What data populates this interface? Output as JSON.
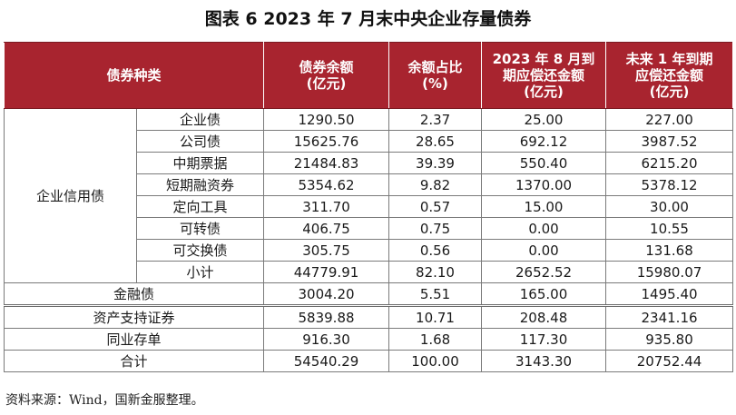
{
  "title": "图表 6  2023 年 7 月末中央企业存量债券",
  "headers": {
    "type": "债券种类",
    "balance_l1": "债券余额",
    "balance_l2": "(亿元)",
    "share_l1": "余额占比",
    "share_l2": "(%)",
    "aug_l1": "2023 年 8 月到",
    "aug_l2": "期应偿还金额",
    "aug_l3": "(亿元)",
    "year_l1": "未来 1 年到期",
    "year_l2": "应偿还金额",
    "year_l3": "(亿元)"
  },
  "group_label": "企业信用债",
  "credit_rows": [
    {
      "name": "企业债",
      "balance": "1290.50",
      "share": "2.37",
      "aug": "25.00",
      "year": "227.00"
    },
    {
      "name": "公司债",
      "balance": "15625.76",
      "share": "28.65",
      "aug": "692.12",
      "year": "3987.52"
    },
    {
      "name": "中期票据",
      "balance": "21484.83",
      "share": "39.39",
      "aug": "550.40",
      "year": "6215.20"
    },
    {
      "name": "短期融资券",
      "balance": "5354.62",
      "share": "9.82",
      "aug": "1370.00",
      "year": "5378.12"
    },
    {
      "name": "定向工具",
      "balance": "311.70",
      "share": "0.57",
      "aug": "15.00",
      "year": "30.00"
    },
    {
      "name": "可转债",
      "balance": "406.75",
      "share": "0.75",
      "aug": "0.00",
      "year": "10.55"
    },
    {
      "name": "可交换债",
      "balance": "305.75",
      "share": "0.56",
      "aug": "0.00",
      "year": "131.68"
    },
    {
      "name": "小计",
      "balance": "44779.91",
      "share": "82.10",
      "aug": "2652.52",
      "year": "15980.07"
    }
  ],
  "financial_row": {
    "name": "金融债",
    "balance": "3004.20",
    "share": "5.51",
    "aug": "165.00",
    "year": "1495.40"
  },
  "other_rows": [
    {
      "name": "资产支持证券",
      "balance": "5839.88",
      "share": "10.71",
      "aug": "208.48",
      "year": "2341.16"
    },
    {
      "name": "同业存单",
      "balance": "916.30",
      "share": "1.68",
      "aug": "117.30",
      "year": "935.80"
    },
    {
      "name": "合计",
      "balance": "54540.29",
      "share": "100.00",
      "aug": "3143.30",
      "year": "20752.44"
    }
  ],
  "source": "资料来源：Wind，国新金服整理。",
  "colors": {
    "header_bg": "#a8242f",
    "header_text": "#ffffff"
  }
}
